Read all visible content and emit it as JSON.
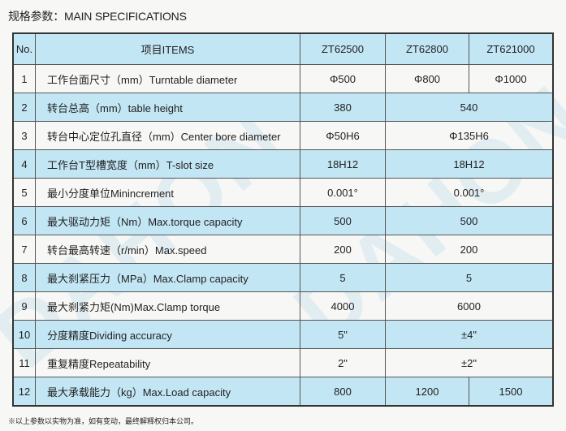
{
  "title": "规格参数：MAIN SPECIFICATIONS",
  "watermark": "DAHON",
  "colors": {
    "header_row": "#c3e6f5",
    "border": "#333333"
  },
  "headers": [
    "No.",
    "项目ITEMS",
    "ZT62500",
    "ZT62800",
    "ZT621000"
  ],
  "rows": [
    {
      "no": "1",
      "item": "工作台面尺寸（mm）Turntable diameter",
      "values": [
        "Φ500",
        "Φ800",
        "Φ1000"
      ]
    },
    {
      "no": "2",
      "item": "转台总高（mm）table height",
      "values": [
        "380",
        "540"
      ]
    },
    {
      "no": "3",
      "item": "转台中心定位孔直径（mm）Center bore diameter",
      "values": [
        "Φ50H6",
        "Φ135H6"
      ]
    },
    {
      "no": "4",
      "item": "工作台T型槽宽度（mm）T-slot size",
      "values": [
        "18H12",
        "18H12"
      ]
    },
    {
      "no": "5",
      "item": "最小分度单位Minincrement",
      "values": [
        "0.001°",
        "0.001°"
      ]
    },
    {
      "no": "6",
      "item": "最大驱动力矩（Nm）Max.torque capacity",
      "values": [
        "500",
        "500"
      ]
    },
    {
      "no": "7",
      "item": "转台最高转速（r/min）Max.speed",
      "values": [
        "200",
        "200"
      ]
    },
    {
      "no": "8",
      "item": "最大刹紧压力（MPa）Max.Clamp capacity",
      "values": [
        "5",
        "5"
      ]
    },
    {
      "no": "9",
      "item": "最大刹紧力矩(Nm)Max.Clamp torque",
      "values": [
        "4000",
        "6000"
      ]
    },
    {
      "no": "10",
      "item": "分度精度Dividing accuracy",
      "values": [
        "5\"",
        "±4\""
      ]
    },
    {
      "no": "11",
      "item": "重复精度Repeatability",
      "values": [
        "2\"",
        "±2\""
      ]
    },
    {
      "no": "12",
      "item": "最大承载能力（kg）Max.Load capacity",
      "values": [
        "800",
        "1200",
        "1500"
      ]
    }
  ],
  "note": "※以上参数以实物为准，如有变动，最终解释权归本公司。"
}
